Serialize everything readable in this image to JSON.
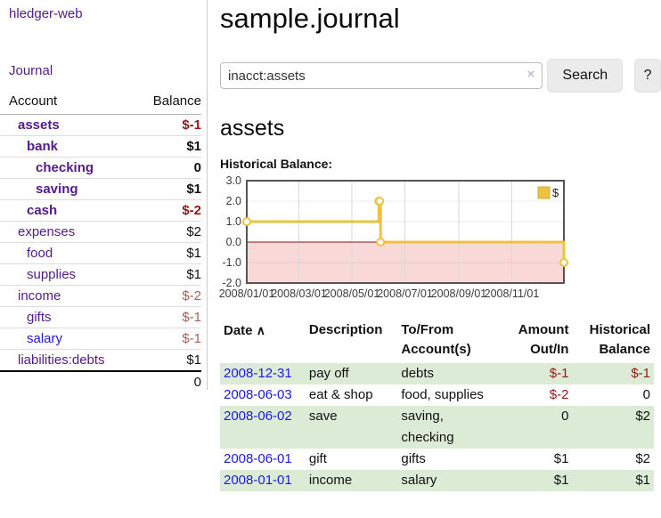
{
  "sidebar": {
    "app_title": "hledger-web",
    "nav": {
      "journal": "Journal"
    },
    "accounts_table": {
      "headers": {
        "account": "Account",
        "balance": "Balance"
      },
      "rows": [
        {
          "name": "assets",
          "indent": 1,
          "bold": true,
          "link_color": "purple",
          "balance": "$-1",
          "balance_style": "negative"
        },
        {
          "name": "bank",
          "indent": 2,
          "bold": true,
          "link_color": "purple",
          "balance": "$1",
          "balance_style": "normal"
        },
        {
          "name": "checking",
          "indent": 3,
          "bold": true,
          "link_color": "purple",
          "balance": "0",
          "balance_style": "normal"
        },
        {
          "name": "saving",
          "indent": 3,
          "bold": true,
          "link_color": "purple",
          "balance": "$1",
          "balance_style": "normal"
        },
        {
          "name": "cash",
          "indent": 2,
          "bold": true,
          "link_color": "purple",
          "balance": "$-2",
          "balance_style": "negative"
        },
        {
          "name": "expenses",
          "indent": 1,
          "bold": false,
          "link_color": "purple",
          "balance": "$2",
          "balance_style": "normal"
        },
        {
          "name": "food",
          "indent": 2,
          "bold": false,
          "link_color": "purple",
          "balance": "$1",
          "balance_style": "normal"
        },
        {
          "name": "supplies",
          "indent": 2,
          "bold": false,
          "link_color": "purple",
          "balance": "$1",
          "balance_style": "normal"
        },
        {
          "name": "income",
          "indent": 1,
          "bold": false,
          "link_color": "purple",
          "balance": "$-2",
          "balance_style": "muted-negative"
        },
        {
          "name": "gifts",
          "indent": 2,
          "bold": false,
          "link_color": "purple",
          "balance": "$-1",
          "balance_style": "muted-negative"
        },
        {
          "name": "salary",
          "indent": 2,
          "bold": false,
          "link_color": "blue",
          "balance": "$-1",
          "balance_style": "muted-negative"
        },
        {
          "name": "liabilities:debts",
          "indent": 1,
          "bold": false,
          "link_color": "purple",
          "balance": "$1",
          "balance_style": "normal"
        }
      ],
      "total": "0"
    }
  },
  "header": {
    "title": "sample.journal"
  },
  "search": {
    "value": "inacct:assets",
    "clear_icon": "×",
    "search_label": "Search",
    "help_label": "?"
  },
  "account_page": {
    "heading": "assets",
    "chart_title": "Historical Balance:"
  },
  "chart_data": {
    "type": "line",
    "step": true,
    "title": "Historical Balance",
    "series": [
      {
        "name": "$",
        "color": "#edc240",
        "points": [
          [
            "2008-01-01",
            1
          ],
          [
            "2008-06-01",
            2
          ],
          [
            "2008-06-02",
            2
          ],
          [
            "2008-06-03",
            0
          ],
          [
            "2008-12-31",
            -1
          ]
        ]
      }
    ],
    "xrange": [
      "2008-01-01",
      "2008-12-31"
    ],
    "ylim": [
      -2,
      3
    ],
    "y_ticks": [
      "3.0",
      "2.0",
      "1.0",
      "0.0",
      "-1.0",
      "-2.0"
    ],
    "x_ticks": [
      "2008/01/01",
      "2008/03/01",
      "2008/05/01",
      "2008/07/01",
      "2008/09/01",
      "2008/11/01"
    ],
    "grid": true,
    "negative_region_color": "#f9d8d8",
    "zero_line_color": "#8f1010",
    "legend": {
      "label": "$",
      "position": "top-right"
    }
  },
  "register": {
    "headers": {
      "date": "Date",
      "sort_icon": "∧",
      "description": "Description",
      "accounts": "To/From Account(s)",
      "amount": "Amount Out/In",
      "balance": "Historical Balance"
    },
    "rows": [
      {
        "date": "2008-12-31",
        "description": "pay off",
        "accounts": "debts",
        "amount": "$-1",
        "amount_style": "negative",
        "balance": "$-1",
        "balance_style": "negative"
      },
      {
        "date": "2008-06-03",
        "description": "eat & shop",
        "accounts": "food, supplies",
        "amount": "$-2",
        "amount_style": "negative",
        "balance": "0",
        "balance_style": "normal"
      },
      {
        "date": "2008-06-02",
        "description": "save",
        "accounts": "saving, checking",
        "amount": "0",
        "amount_style": "normal",
        "balance": "$2",
        "balance_style": "normal"
      },
      {
        "date": "2008-06-01",
        "description": "gift",
        "accounts": "gifts",
        "amount": "$1",
        "amount_style": "normal",
        "balance": "$2",
        "balance_style": "normal"
      },
      {
        "date": "2008-01-01",
        "description": "income",
        "accounts": "salary",
        "amount": "$1",
        "amount_style": "normal",
        "balance": "$1",
        "balance_style": "normal"
      }
    ]
  },
  "colors": {
    "link_purple": "#551a8b",
    "link_blue": "#1b1be0",
    "negative_red": "#951717",
    "muted_negative_red": "#ab5c5c",
    "row_green": "#dcebd6",
    "series_gold": "#edc240",
    "negative_region_pink": "#f9d8d8",
    "zero_line_darkred": "#8f1010",
    "chart_border_gray": "#545454"
  }
}
